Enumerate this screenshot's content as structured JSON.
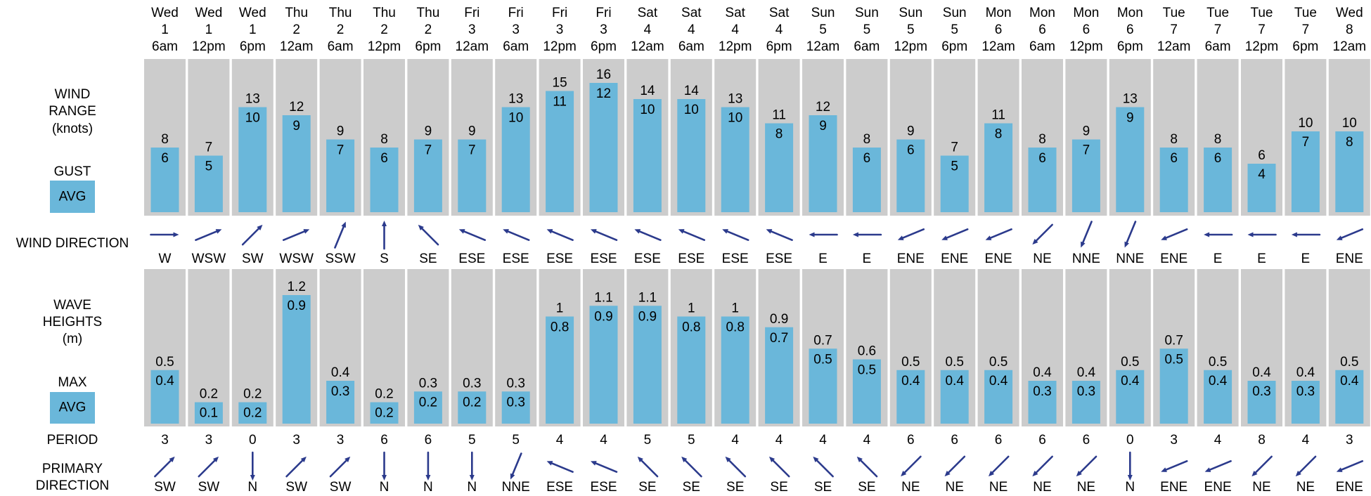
{
  "labels": {
    "wind_range": [
      "WIND",
      "RANGE",
      "(knots)"
    ],
    "gust": "GUST",
    "avg": "AVG",
    "wind_direction": "WIND DIRECTION",
    "wave_heights": [
      "WAVE",
      "HEIGHTS",
      "(m)"
    ],
    "max": "MAX",
    "period": "PERIOD",
    "primary_direction": [
      "PRIMARY",
      "DIRECTION"
    ]
  },
  "colors": {
    "panel_bg": "#cccccc",
    "bar": "#6ab7da",
    "arrow": "#2b3a8c"
  },
  "chart_data": {
    "type": "bar",
    "columns": [
      {
        "day": "Wed",
        "date": "1",
        "time": "6am"
      },
      {
        "day": "Wed",
        "date": "1",
        "time": "12pm"
      },
      {
        "day": "Wed",
        "date": "1",
        "time": "6pm"
      },
      {
        "day": "Thu",
        "date": "2",
        "time": "12am"
      },
      {
        "day": "Thu",
        "date": "2",
        "time": "6am"
      },
      {
        "day": "Thu",
        "date": "2",
        "time": "12pm"
      },
      {
        "day": "Thu",
        "date": "2",
        "time": "6pm"
      },
      {
        "day": "Fri",
        "date": "3",
        "time": "12am"
      },
      {
        "day": "Fri",
        "date": "3",
        "time": "6am"
      },
      {
        "day": "Fri",
        "date": "3",
        "time": "12pm"
      },
      {
        "day": "Fri",
        "date": "3",
        "time": "6pm"
      },
      {
        "day": "Sat",
        "date": "4",
        "time": "12am"
      },
      {
        "day": "Sat",
        "date": "4",
        "time": "6am"
      },
      {
        "day": "Sat",
        "date": "4",
        "time": "12pm"
      },
      {
        "day": "Sat",
        "date": "4",
        "time": "6pm"
      },
      {
        "day": "Sun",
        "date": "5",
        "time": "12am"
      },
      {
        "day": "Sun",
        "date": "5",
        "time": "6am"
      },
      {
        "day": "Sun",
        "date": "5",
        "time": "12pm"
      },
      {
        "day": "Sun",
        "date": "5",
        "time": "6pm"
      },
      {
        "day": "Mon",
        "date": "6",
        "time": "12am"
      },
      {
        "day": "Mon",
        "date": "6",
        "time": "6am"
      },
      {
        "day": "Mon",
        "date": "6",
        "time": "12pm"
      },
      {
        "day": "Mon",
        "date": "6",
        "time": "6pm"
      },
      {
        "day": "Tue",
        "date": "7",
        "time": "12am"
      },
      {
        "day": "Tue",
        "date": "7",
        "time": "6am"
      },
      {
        "day": "Tue",
        "date": "7",
        "time": "12pm"
      },
      {
        "day": "Tue",
        "date": "7",
        "time": "6pm"
      },
      {
        "day": "Wed",
        "date": "8",
        "time": "12am"
      }
    ],
    "wind": {
      "ylim": [
        0,
        17
      ],
      "gust": [
        8,
        7,
        13,
        12,
        9,
        8,
        9,
        9,
        13,
        15,
        16,
        14,
        14,
        13,
        11,
        12,
        8,
        9,
        7,
        11,
        8,
        9,
        13,
        8,
        8,
        6,
        10,
        10
      ],
      "avg": [
        6,
        5,
        10,
        9,
        7,
        6,
        7,
        7,
        10,
        11,
        12,
        10,
        10,
        10,
        8,
        9,
        6,
        6,
        5,
        8,
        6,
        7,
        9,
        6,
        6,
        4,
        7,
        8
      ],
      "direction": [
        "W",
        "WSW",
        "SW",
        "WSW",
        "SSW",
        "S",
        "SE",
        "ESE",
        "ESE",
        "ESE",
        "ESE",
        "ESE",
        "ESE",
        "ESE",
        "ESE",
        "E",
        "E",
        "ENE",
        "ENE",
        "ENE",
        "NE",
        "NNE",
        "NNE",
        "ENE",
        "E",
        "E",
        "E",
        "ENE"
      ]
    },
    "waves": {
      "ylim": [
        0,
        1.35
      ],
      "max": [
        "0.5",
        "0.2",
        "0.2",
        "1.2",
        "0.4",
        "0.2",
        "0.3",
        "0.3",
        "0.3",
        "1",
        "1.1",
        "1.1",
        "1",
        "1",
        "0.9",
        "0.7",
        "0.6",
        "0.5",
        "0.5",
        "0.5",
        "0.4",
        "0.4",
        "0.5",
        "0.7",
        "0.5",
        "0.4",
        "0.4",
        "0.5"
      ],
      "avg": [
        "0.4",
        "0.1",
        "0.2",
        "0.9",
        "0.3",
        "0.2",
        "0.2",
        "0.2",
        "0.3",
        "0.8",
        "0.9",
        "0.9",
        "0.8",
        "0.8",
        "0.7",
        "0.5",
        "0.5",
        "0.4",
        "0.4",
        "0.4",
        "0.3",
        "0.3",
        "0.4",
        "0.5",
        "0.4",
        "0.3",
        "0.3",
        "0.4"
      ],
      "period": [
        3,
        3,
        0,
        3,
        3,
        6,
        6,
        5,
        5,
        4,
        4,
        5,
        5,
        4,
        4,
        4,
        4,
        6,
        6,
        6,
        6,
        6,
        0,
        3,
        4,
        8,
        4,
        3
      ],
      "primary_direction": [
        "SW",
        "SW",
        "N",
        "SW",
        "SW",
        "N",
        "N",
        "N",
        "NNE",
        "ESE",
        "ESE",
        "SE",
        "SE",
        "SE",
        "SE",
        "SE",
        "SE",
        "NE",
        "NE",
        "NE",
        "NE",
        "NE",
        "N",
        "ENE",
        "ENE",
        "NE",
        "NE",
        "ENE"
      ]
    }
  }
}
